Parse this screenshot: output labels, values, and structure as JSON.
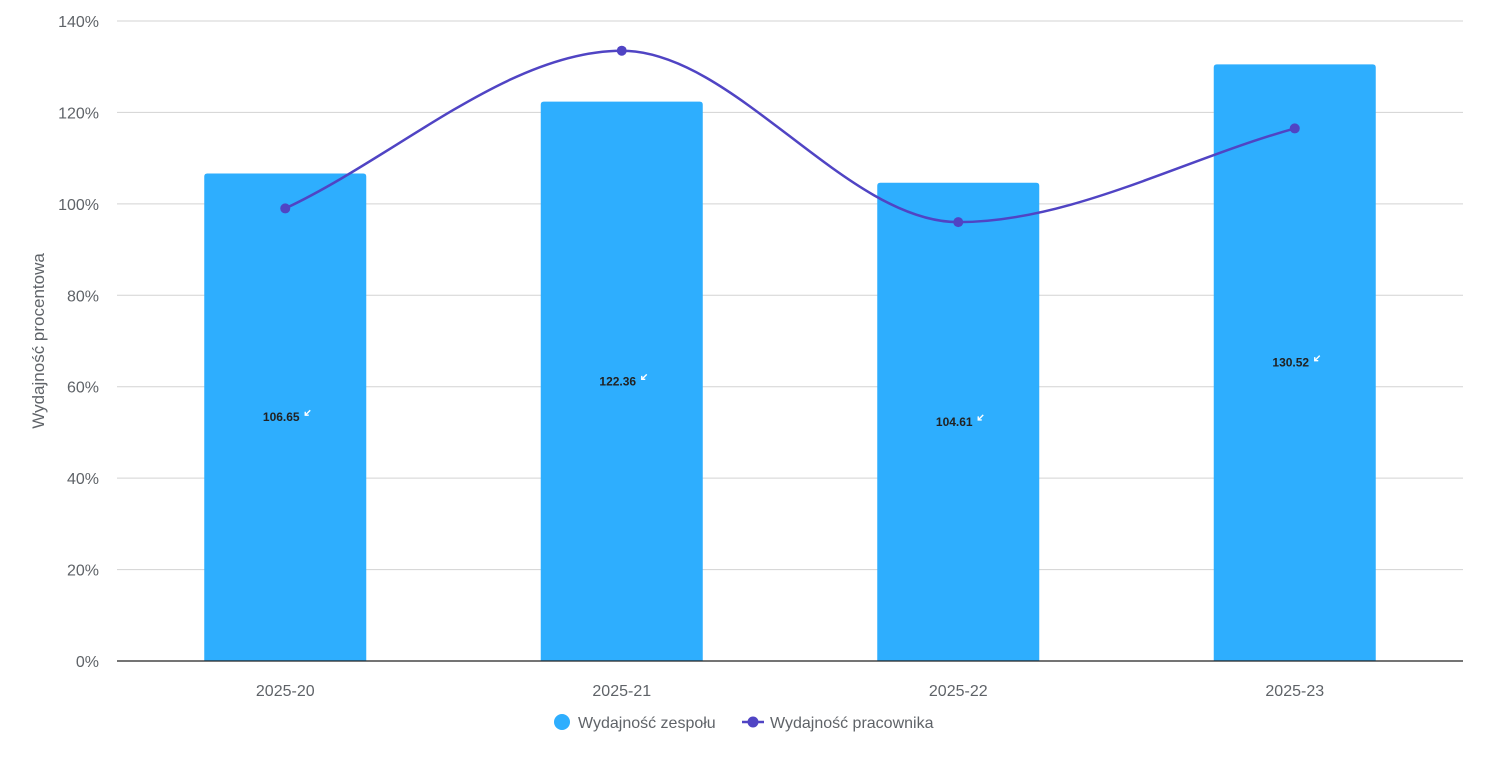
{
  "chart_data": {
    "type": "bar",
    "categories": [
      "2025-20",
      "2025-21",
      "2025-22",
      "2025-23"
    ],
    "series": [
      {
        "name": "Wydajność zespołu",
        "type": "bar",
        "values": [
          106.65,
          122.36,
          104.61,
          130.52
        ],
        "data_labels": [
          "106.65",
          "122.36",
          "104.61",
          "130.52"
        ],
        "color": "#2eaefe"
      },
      {
        "name": "Wydajność pracownika",
        "type": "line",
        "smooth": true,
        "values": [
          99,
          133.5,
          96,
          116.5
        ],
        "color": "#5044c4"
      }
    ],
    "ylabel": "Wydajność procentowa",
    "xlabel": "",
    "ylim": [
      0,
      140
    ],
    "yticks": [
      0,
      20,
      40,
      60,
      80,
      100,
      120,
      140
    ],
    "ytick_labels": [
      "0%",
      "20%",
      "40%",
      "60%",
      "80%",
      "100%",
      "120%",
      "140%"
    ],
    "grid": true,
    "legend_position": "bottom-center"
  }
}
